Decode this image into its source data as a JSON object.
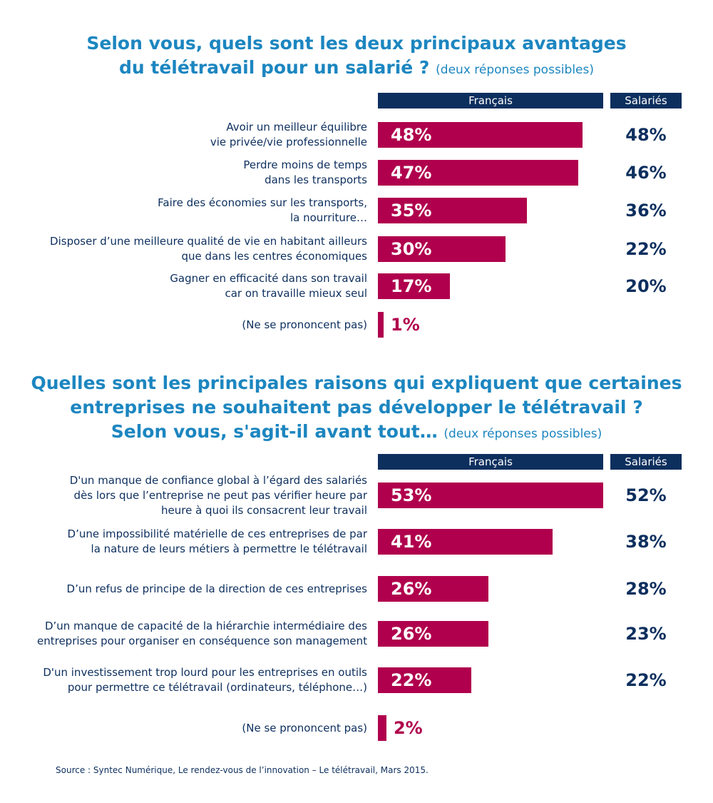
{
  "colors": {
    "title": "#1c86c0",
    "navy": "#0d2f5e",
    "bar": "#b0004d"
  },
  "chart_data": [
    {
      "type": "bar",
      "title_line1": "Selon vous, quels sont les deux principaux avantages",
      "title_line2": "du télétravail pour un salarié ?",
      "note": "(deux réponses possibles)",
      "col_francais": "Français",
      "col_salaries": "Salariés",
      "categories": [
        [
          "Avoir un meilleur équilibre",
          "vie privée/vie professionnelle"
        ],
        [
          "Perdre moins de temps",
          "dans les transports"
        ],
        [
          "Faire des économies sur les transports,",
          "la nourriture…"
        ],
        [
          "Disposer d’une meilleure qualité de vie en habitant ailleurs",
          "que dans les centres économiques"
        ],
        [
          "Gagner en efficacité dans son travail",
          "car on travaille mieux seul"
        ],
        [
          "(Ne se prononcent pas)"
        ]
      ],
      "series": [
        {
          "name": "Français",
          "values": [
            48,
            47,
            35,
            30,
            17,
            1
          ],
          "labels": [
            "48%",
            "47%",
            "35%",
            "30%",
            "17%",
            "1%"
          ]
        },
        {
          "name": "Salariés",
          "values": [
            48,
            46,
            36,
            22,
            20,
            null
          ],
          "labels": [
            "48%",
            "46%",
            "36%",
            "22%",
            "20%",
            ""
          ]
        }
      ]
    },
    {
      "type": "bar",
      "title_line1": "Quelles sont les principales raisons qui expliquent que certaines",
      "title_line2": "entreprises ne souhaitent pas développer le télétravail ?",
      "title_line3": "Selon vous, s'agit-il avant tout…",
      "note": "(deux réponses possibles)",
      "col_francais": "Français",
      "col_salaries": "Salariés",
      "categories": [
        [
          "D'un manque de confiance global à l’égard des salariés",
          "dès lors que l’entreprise ne peut pas vérifier heure par",
          "heure à quoi ils consacrent leur travail"
        ],
        [
          "D’une impossibilité matérielle de ces entreprises de par",
          "la nature de leurs métiers à permettre le télétravail"
        ],
        [
          "D’un refus de principe de la direction de ces entreprises"
        ],
        [
          "D’un manque de capacité de la hiérarchie intermédiaire des",
          "entreprises pour organiser en conséquence son management"
        ],
        [
          "D'un investissement trop lourd pour les entreprises en outils",
          "pour permettre ce télétravail (ordinateurs, téléphone…)"
        ],
        [
          "(Ne se prononcent pas)"
        ]
      ],
      "series": [
        {
          "name": "Français",
          "values": [
            53,
            41,
            26,
            26,
            22,
            2
          ],
          "labels": [
            "53%",
            "41%",
            "26%",
            "26%",
            "22%",
            "2%"
          ]
        },
        {
          "name": "Salariés",
          "values": [
            52,
            38,
            28,
            23,
            22,
            null
          ],
          "labels": [
            "52%",
            "38%",
            "28%",
            "23%",
            "22%",
            ""
          ]
        }
      ]
    }
  ],
  "source": "Source : Syntec Numérique, Le rendez-vous de l’innovation – Le télétravail, Mars 2015."
}
